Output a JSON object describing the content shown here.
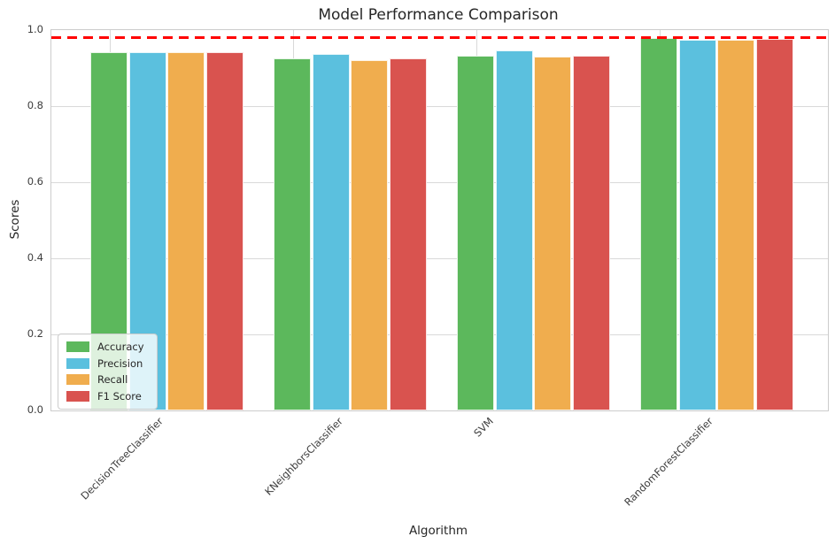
{
  "chart_data": {
    "type": "bar",
    "title": "Model Performance Comparison",
    "xlabel": "Algorithm",
    "ylabel": "Scores",
    "ylim": [
      0,
      1.0
    ],
    "ytick_labels": [
      "0.0",
      "0.2",
      "0.4",
      "0.6",
      "0.8",
      "1.0"
    ],
    "categories": [
      "DecisionTreeClassifier",
      "KNeighborsClassifier",
      "SVM",
      "RandomForestClassifier"
    ],
    "series": [
      {
        "name": "Accuracy",
        "color": "#5cb85c",
        "values": [
          0.942,
          0.925,
          0.933,
          0.979
        ]
      },
      {
        "name": "Precision",
        "color": "#5bc0de",
        "values": [
          0.941,
          0.938,
          0.947,
          0.975
        ]
      },
      {
        "name": "Recall",
        "color": "#f0ad4e",
        "values": [
          0.941,
          0.922,
          0.931,
          0.975
        ]
      },
      {
        "name": "F1 Score",
        "color": "#d9534f",
        "values": [
          0.942,
          0.925,
          0.933,
          0.978
        ]
      }
    ],
    "reference_line": {
      "value": 0.98,
      "color": "#ff0000",
      "style": "dashed"
    },
    "legend": {
      "position": "lower-left",
      "entries": [
        "Accuracy",
        "Precision",
        "Recall",
        "F1 Score"
      ]
    },
    "grid": true,
    "grid_color": "#d9d9d9",
    "spine_color": "#cccccc",
    "background": "#ffffff"
  }
}
